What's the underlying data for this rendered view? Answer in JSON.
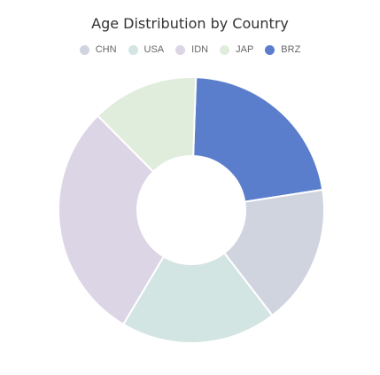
{
  "chart_data": {
    "type": "pie",
    "title": "Age Distribution by Country",
    "categories": [
      "CHN",
      "USA",
      "IDN",
      "JAP",
      "BRZ"
    ],
    "values": [
      17,
      19,
      29,
      13,
      22
    ],
    "colors": [
      "#cfd4de",
      "#d3e5e3",
      "#dcd5e5",
      "#e0eddd",
      "#5b7ecc"
    ],
    "slice_order": [
      "BRZ",
      "CHN",
      "USA",
      "IDN",
      "JAP"
    ],
    "start_angle": 2,
    "donut": true,
    "legend": "top-center"
  }
}
